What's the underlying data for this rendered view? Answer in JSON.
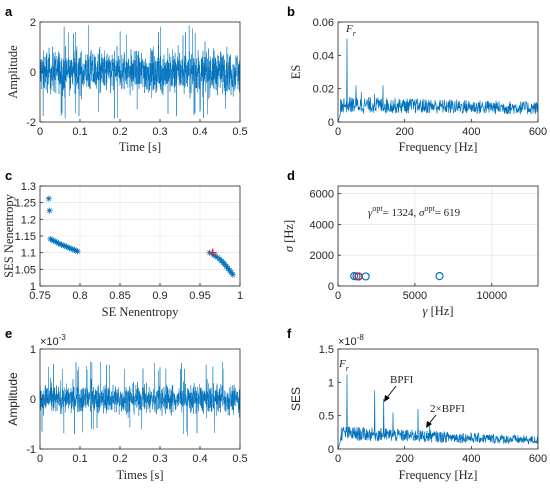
{
  "colors": {
    "series": "#0072bd",
    "marker_red": "#d62728",
    "axis": "#262626",
    "grid": "#e1e1e1",
    "background": "#ffffff"
  },
  "chart_data": [
    {
      "panel": "a",
      "type": "line",
      "xlabel": "Time [s]",
      "ylabel": "Amplitude",
      "xlim": [
        0,
        0.5
      ],
      "ylim": [
        -2,
        2
      ],
      "xticks": [
        "0",
        "0.1",
        "0.2",
        "0.3",
        "0.4",
        "0.5"
      ],
      "yticks": [
        "-2",
        "0",
        "2"
      ],
      "grid": false,
      "series": [
        {
          "style": "dense noise",
          "x_range": [
            0,
            0.5
          ],
          "amplitude_peak": 1.9,
          "amplitude_typical": 0.6
        }
      ]
    },
    {
      "panel": "b",
      "type": "line",
      "xlabel": "Frequency [Hz]",
      "ylabel": "ES",
      "xlim": [
        0,
        600
      ],
      "ylim": [
        0,
        0.06
      ],
      "xticks": [
        "0",
        "200",
        "400",
        "600"
      ],
      "yticks": [
        "0",
        "0.02",
        "0.04",
        "0.06"
      ],
      "grid": false,
      "annotations": [
        {
          "text": "F",
          "sub": "r",
          "x": 30,
          "y": 0.057
        }
      ],
      "series": [
        {
          "peaks": [
            {
              "x": 27,
              "y": 0.05
            },
            {
              "x": 54,
              "y": 0.022
            },
            {
              "x": 70,
              "y": 0.018
            },
            {
              "x": 110,
              "y": 0.017
            },
            {
              "x": 135,
              "y": 0.022
            }
          ],
          "baseline": 0.011
        }
      ]
    },
    {
      "panel": "c",
      "type": "scatter",
      "xlabel": "SE Nenentropy",
      "ylabel": "SES Nenentropy",
      "xlim": [
        0.75,
        1
      ],
      "ylim": [
        1,
        1.3
      ],
      "xticks": [
        "0.75",
        "0.8",
        "0.85",
        "0.9",
        "0.95",
        "1"
      ],
      "yticks": [
        "1",
        "1.05",
        "1.1",
        "1.15",
        "1.2",
        "1.25",
        "1.3"
      ],
      "grid": true,
      "series": [
        {
          "marker": "asterisk",
          "points": [
            [
              0.761,
              1.262
            ],
            [
              0.762,
              1.226
            ],
            [
              0.763,
              1.141
            ],
            [
              0.765,
              1.138
            ],
            [
              0.767,
              1.136
            ],
            [
              0.769,
              1.134
            ],
            [
              0.771,
              1.131
            ],
            [
              0.773,
              1.128
            ],
            [
              0.775,
              1.126
            ],
            [
              0.777,
              1.124
            ],
            [
              0.779,
              1.122
            ],
            [
              0.781,
              1.12
            ],
            [
              0.783,
              1.118
            ],
            [
              0.785,
              1.116
            ],
            [
              0.787,
              1.114
            ],
            [
              0.789,
              1.112
            ],
            [
              0.791,
              1.11
            ],
            [
              0.793,
              1.108
            ],
            [
              0.795,
              1.106
            ],
            [
              0.797,
              1.104
            ],
            [
              0.962,
              1.1
            ],
            [
              0.966,
              1.095
            ],
            [
              0.969,
              1.09
            ],
            [
              0.972,
              1.085
            ],
            [
              0.975,
              1.08
            ],
            [
              0.977,
              1.075
            ],
            [
              0.979,
              1.07
            ],
            [
              0.981,
              1.065
            ],
            [
              0.983,
              1.059
            ],
            [
              0.985,
              1.053
            ],
            [
              0.987,
              1.047
            ],
            [
              0.989,
              1.041
            ],
            [
              0.991,
              1.034
            ]
          ]
        },
        {
          "marker": "plus-red",
          "points": [
            [
              0.966,
              1.1
            ]
          ]
        }
      ]
    },
    {
      "panel": "d",
      "type": "scatter",
      "xlabel": "γ [Hz]",
      "ylabel": "σ [Hz]",
      "xlim": [
        0,
        13000
      ],
      "ylim": [
        0,
        6500
      ],
      "xticks": [
        "0",
        "5000",
        "10000"
      ],
      "yticks": [
        "0",
        "2000",
        "4000",
        "6000"
      ],
      "grid": true,
      "annotation": {
        "gamma_value": "= 1324, ",
        "sigma_value": "= 619",
        "opt": "opt"
      },
      "series": [
        {
          "marker": "circle",
          "points": [
            [
              1050,
              640
            ],
            [
              1200,
              630
            ],
            [
              1350,
              620
            ],
            [
              1800,
              620
            ],
            [
              6600,
              640
            ]
          ]
        },
        {
          "marker": "circle-red",
          "points": [
            [
              1324,
              619
            ]
          ]
        }
      ]
    },
    {
      "panel": "e",
      "type": "line",
      "xlabel": "Times [s]",
      "ylabel": "Amplitude",
      "exponent": "×10",
      "exponent_power": "-3",
      "xlim": [
        0,
        0.5
      ],
      "ylim": [
        -1,
        1
      ],
      "xticks": [
        "0",
        "0.1",
        "0.2",
        "0.3",
        "0.4",
        "0.5"
      ],
      "yticks": [
        "-1",
        "0",
        "1"
      ],
      "grid": false,
      "series": [
        {
          "style": "dense noise",
          "amplitude_peak": 0.75,
          "amplitude_typical": 0.2
        }
      ]
    },
    {
      "panel": "f",
      "type": "line",
      "xlabel": "Frequency [Hz]",
      "ylabel": "SES",
      "exponent": "×10",
      "exponent_power": "-8",
      "xlim": [
        0,
        600
      ],
      "ylim": [
        0,
        1.5
      ],
      "xticks": [
        "0",
        "200",
        "400",
        "600"
      ],
      "yticks": [
        "0",
        "0.5",
        "1",
        "1.5"
      ],
      "grid": false,
      "annotations": [
        {
          "text": "F",
          "sub": "r"
        },
        {
          "text": "BPFI"
        },
        {
          "text": "2×BPFI"
        }
      ],
      "series": [
        {
          "peaks": [
            {
              "x": 27,
              "y": 1.12
            },
            {
              "x": 110,
              "y": 0.88
            },
            {
              "x": 137,
              "y": 0.75
            },
            {
              "x": 165,
              "y": 0.55
            },
            {
              "x": 240,
              "y": 0.6
            },
            {
              "x": 275,
              "y": 0.35
            }
          ],
          "baseline": 0.25
        }
      ]
    }
  ],
  "labels": {
    "a": "a",
    "b": "b",
    "c": "c",
    "d": "d",
    "e": "e",
    "f": "f",
    "a_x": "Time [s]",
    "a_y": "Amplitude",
    "b_x": "Frequency [Hz]",
    "b_y": "ES",
    "c_x": "SE Nenentropy",
    "c_y": "SES Nenentropy",
    "d_x_sym": "γ",
    "d_x_unit": " [Hz]",
    "d_y_sym": "σ",
    "d_y_unit": " [Hz]",
    "e_x": "Times [s]",
    "e_y": "Amplitude",
    "f_x": "Frequency [Hz]",
    "f_y": "SES",
    "gamma": "γ",
    "sigma": "σ",
    "opt": "opt",
    "d_ann_gamma_val": "= 1324, ",
    "d_ann_sigma_val": "= 619",
    "fr_F": "F",
    "fr_r": "r",
    "bpfi": "BPFI",
    "bpfi2": "2×BPFI",
    "exp_base": "×10",
    "e_exp": "-3",
    "f_exp": "-8"
  }
}
